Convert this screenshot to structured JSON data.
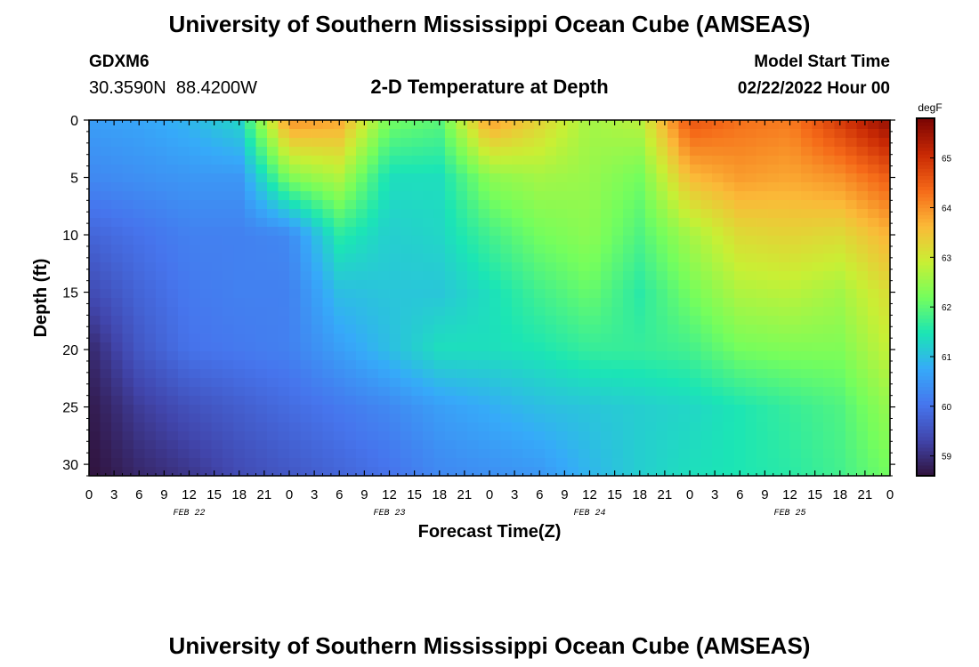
{
  "header": {
    "title": "University of Southern Mississippi Ocean Cube (AMSEAS)",
    "station": "GDXM6",
    "coords": "30.3590N  88.4200W",
    "plot_title": "2-D Temperature at Depth",
    "start_label": "Model Start Time",
    "start_value": "02/22/2022 Hour 00"
  },
  "footer": {
    "title": "University of Southern Mississippi Ocean Cube (AMSEAS)"
  },
  "chart_data": {
    "type": "heatmap",
    "title": "2-D Temperature at Depth",
    "xlabel": "Forecast Time(Z)",
    "ylabel": "Depth (ft)",
    "x_tick_labels": [
      "0",
      "3",
      "6",
      "9",
      "12",
      "15",
      "18",
      "21",
      "0",
      "3",
      "6",
      "9",
      "12",
      "15",
      "18",
      "21",
      "0",
      "3",
      "6",
      "9",
      "12",
      "15",
      "18",
      "21",
      "0",
      "3",
      "6",
      "9",
      "12",
      "15",
      "18",
      "21",
      "0"
    ],
    "date_labels": [
      {
        "label": "FEB 22",
        "hour": 12
      },
      {
        "label": "FEB 23",
        "hour": 36
      },
      {
        "label": "FEB 24",
        "hour": 60
      },
      {
        "label": "FEB 25",
        "hour": 84
      }
    ],
    "xlim": [
      0,
      96
    ],
    "ylim": [
      0,
      31
    ],
    "y_ticks": [
      0,
      5,
      10,
      15,
      20,
      25,
      30
    ],
    "colorbar": {
      "unit": "degF",
      "ticks": [
        59,
        60,
        61,
        62,
        63,
        64,
        65
      ],
      "range": [
        58.6,
        65.8
      ]
    },
    "grid": false,
    "hours": [
      0,
      6,
      12,
      18,
      24,
      30,
      36,
      42,
      48,
      54,
      60,
      66,
      72,
      78,
      84,
      90,
      96
    ],
    "depths": [
      0,
      5,
      10,
      15,
      20,
      25,
      31
    ],
    "temperature": [
      [
        60.6,
        60.7,
        60.9,
        61.3,
        64.0,
        63.8,
        62.2,
        62.0,
        63.9,
        63.3,
        62.6,
        62.8,
        64.6,
        64.3,
        64.2,
        64.9,
        65.6
      ],
      [
        60.3,
        60.4,
        60.5,
        60.5,
        62.3,
        62.7,
        61.4,
        61.4,
        62.4,
        62.6,
        62.5,
        62.2,
        63.6,
        63.9,
        63.8,
        64.0,
        64.5
      ],
      [
        59.8,
        60.0,
        60.2,
        60.2,
        60.3,
        61.6,
        61.2,
        61.3,
        61.8,
        62.2,
        62.4,
        61.9,
        62.6,
        63.2,
        63.3,
        63.2,
        63.7
      ],
      [
        59.4,
        59.8,
        60.1,
        60.2,
        60.2,
        61.0,
        61.1,
        61.1,
        61.4,
        61.8,
        62.1,
        61.6,
        62.2,
        62.7,
        62.8,
        62.6,
        63.2
      ],
      [
        58.9,
        59.6,
        60.0,
        60.1,
        60.2,
        60.6,
        61.0,
        61.4,
        61.4,
        61.5,
        61.7,
        61.7,
        61.8,
        62.2,
        62.3,
        62.3,
        62.9
      ],
      [
        58.7,
        59.2,
        59.5,
        59.7,
        59.9,
        60.1,
        60.3,
        60.6,
        60.8,
        61.0,
        61.1,
        61.2,
        61.3,
        61.5,
        61.7,
        61.9,
        62.5
      ],
      [
        58.6,
        58.9,
        59.1,
        59.4,
        59.6,
        59.8,
        60.0,
        60.3,
        60.4,
        60.5,
        60.9,
        61.2,
        61.4,
        61.5,
        61.6,
        61.8,
        62.2
      ]
    ]
  }
}
